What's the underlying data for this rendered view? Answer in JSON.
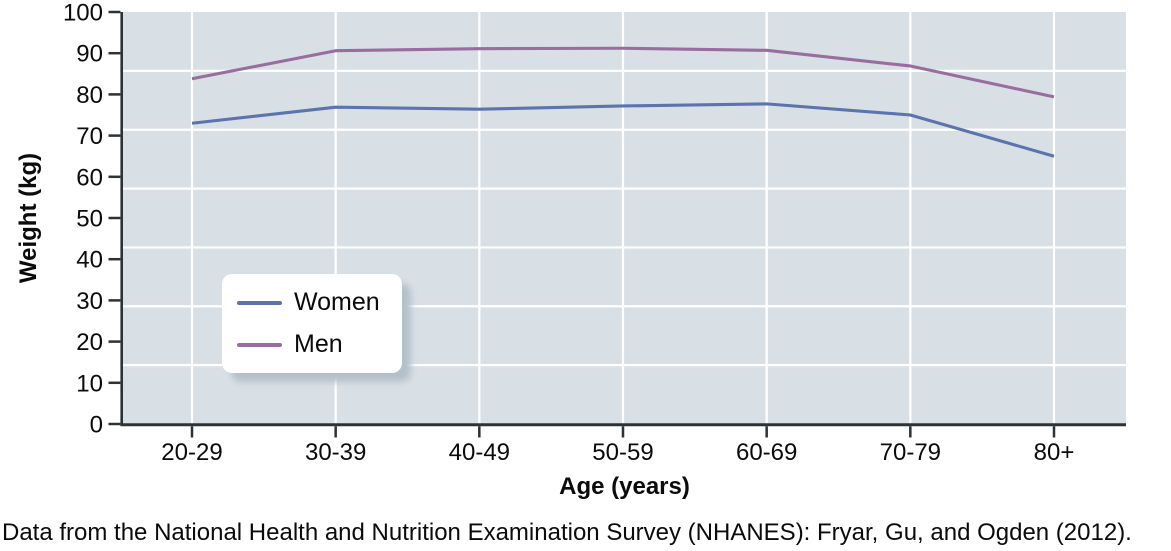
{
  "figure": {
    "caption": "Data from the National Health and Nutrition Examination Survey (NHANES): Fryar, Gu, and Ogden (2012)."
  },
  "chart_data": {
    "type": "line",
    "title": "",
    "xlabel": "Age (years)",
    "ylabel": "Weight (kg)",
    "categories": [
      "20-29",
      "30-39",
      "40-49",
      "50-59",
      "60-69",
      "70-79",
      "80+"
    ],
    "series": [
      {
        "name": "Women",
        "color": "#5c74ae",
        "values": [
          73.0,
          76.9,
          76.4,
          77.2,
          77.7,
          75.0,
          65.0
        ]
      },
      {
        "name": "Men",
        "color": "#996d9f",
        "values": [
          83.8,
          90.6,
          91.1,
          91.2,
          90.7,
          86.9,
          79.4
        ]
      }
    ],
    "ylim": [
      0,
      100
    ],
    "ytick_step": 10,
    "grid": {
      "on": true,
      "horizontal_divisions": 7,
      "vertical_at_categories": true,
      "color": "#ffffff"
    },
    "panel_bg": "#d9e0e5",
    "axis_color": "#2d3237",
    "text_color": "#0b0b0b",
    "legend": {
      "position": "lower-left",
      "entries": [
        "Women",
        "Men"
      ]
    }
  }
}
